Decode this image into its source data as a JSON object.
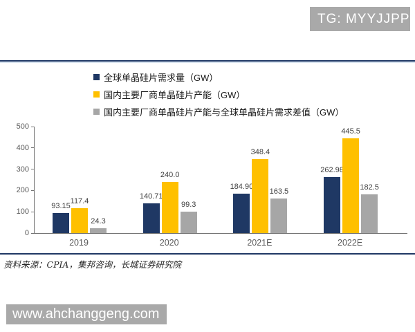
{
  "badge": {
    "text": "TG: MYYJJPP"
  },
  "watermark": {
    "url": "www.ahchanggeng.com"
  },
  "source_note": "资料来源：CPIA，集邦咨询，长城证券研究院",
  "colors": {
    "navy": "#1F3864",
    "yellow": "#FFC000",
    "gray": "#A6A6A6",
    "badge_bg": "#A9A9A9",
    "rule_navy": "#1F3864",
    "axis": "#737373"
  },
  "chart_data": {
    "type": "bar",
    "categories": [
      "2019",
      "2020",
      "2021E",
      "2022E"
    ],
    "series": [
      {
        "name": "全球单晶硅片需求量（GW）",
        "color": "#1F3864",
        "values": [
          93.15,
          140.71,
          184.9,
          262.98
        ],
        "labels": [
          "93.15",
          "140.71",
          "184.90",
          "262.98"
        ]
      },
      {
        "name": "国内主要厂商单晶硅片产能（GW）",
        "color": "#FFC000",
        "values": [
          117.4,
          240.0,
          348.4,
          445.5
        ],
        "labels": [
          "117.4",
          "240.0",
          "348.4",
          "445.5"
        ]
      },
      {
        "name": "国内主要厂商单晶硅片产能与全球单晶硅片需求差值（GW）",
        "color": "#A6A6A6",
        "values": [
          24.3,
          99.3,
          163.5,
          182.5
        ],
        "labels": [
          "24.3",
          "99.3",
          "163.5",
          "182.5"
        ]
      }
    ],
    "ylim": [
      0,
      500
    ],
    "yticks": [
      0,
      100,
      200,
      300,
      400,
      500
    ],
    "grid": false,
    "legend_position": "top-left",
    "xlabel": "",
    "ylabel": ""
  }
}
